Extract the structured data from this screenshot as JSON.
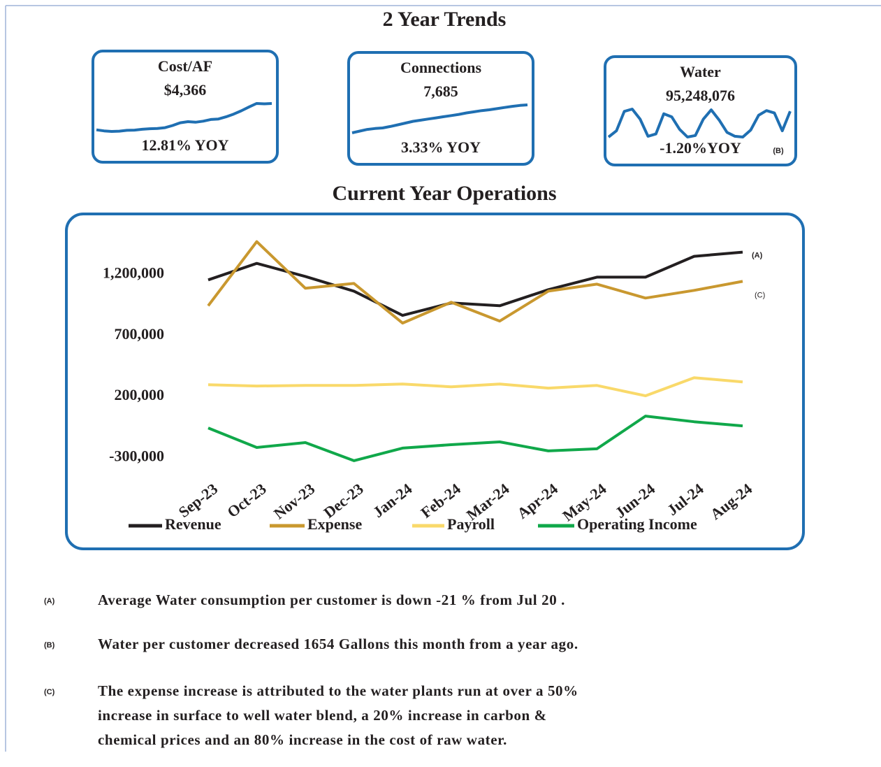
{
  "header": {
    "title": "2 Year Trends"
  },
  "kpis": [
    {
      "label": "Cost/AF",
      "value": "$4,366",
      "change": "12.81% YOY",
      "color": "#1f6fb2",
      "trend": [
        3880,
        3860,
        3850,
        3855,
        3870,
        3875,
        3890,
        3900,
        3905,
        3920,
        3960,
        4010,
        4030,
        4020,
        4040,
        4070,
        4080,
        4120,
        4170,
        4230,
        4300,
        4366,
        4360,
        4366
      ]
    },
    {
      "label": "Connections",
      "value": "7,685",
      "change": "3.33% YOY",
      "color": "#1f6fb2",
      "trend": [
        7200,
        7230,
        7260,
        7275,
        7285,
        7310,
        7340,
        7370,
        7400,
        7420,
        7440,
        7460,
        7480,
        7500,
        7520,
        7545,
        7565,
        7585,
        7600,
        7620,
        7640,
        7660,
        7675,
        7685
      ]
    },
    {
      "label": "Water",
      "value": "95,248,076",
      "change": "-1.20%YOY",
      "note": "(B)",
      "color": "#1f6fb2",
      "trend": [
        62000000,
        70000000,
        95000000,
        98000000,
        85000000,
        63000000,
        66000000,
        92000000,
        88000000,
        72000000,
        62000000,
        64000000,
        85000000,
        97000000,
        84000000,
        68000000,
        63000000,
        62000000,
        71000000,
        90000000,
        96000000,
        93000000,
        70000000,
        95248076
      ]
    }
  ],
  "section_title": "Current Year  Operations",
  "chart_data": {
    "type": "line",
    "categories": [
      "Sep-23",
      "Oct-23",
      "Nov-23",
      "Dec-23",
      "Jan-24",
      "Feb-24",
      "Mar-24",
      "Apr-24",
      "May-24",
      "Jun-24",
      "Jul-24",
      "Aug-24"
    ],
    "series": [
      {
        "name": "Revenue",
        "color": "#231f20",
        "values": [
          1155000,
          1290000,
          1183000,
          1063000,
          864000,
          966000,
          943000,
          1075000,
          1177000,
          1177000,
          1348000,
          1382000
        ]
      },
      {
        "name": "Expense",
        "color": "#c9982f",
        "values": [
          943000,
          1468000,
          1086000,
          1126000,
          801000,
          972000,
          818000,
          1063000,
          1120000,
          1006000,
          1069000,
          1143000
        ]
      },
      {
        "name": "Payroll",
        "color": "#f9d96a",
        "values": [
          297000,
          286000,
          291000,
          291000,
          303000,
          280000,
          303000,
          269000,
          291000,
          206000,
          354000,
          320000
        ]
      },
      {
        "name": "Operating Income",
        "color": "#10a84a",
        "values": [
          -57000,
          -217000,
          -177000,
          -325000,
          -222000,
          -194000,
          -171000,
          -245000,
          -228000,
          40000,
          -6000,
          -40000
        ]
      }
    ],
    "ylim": [
      -400000,
      1500000
    ],
    "yticks": [
      {
        "value": -300000,
        "label": "-300,000"
      },
      {
        "value": 200000,
        "label": "200,000"
      },
      {
        "value": 700000,
        "label": "700,000"
      },
      {
        "value": 1200000,
        "label": "1,200,000"
      }
    ],
    "grid": false,
    "legend": "bottom",
    "annotations": [
      {
        "text": "(A)"
      },
      {
        "text": "(C)"
      }
    ]
  },
  "notes": [
    {
      "marker": "(A)",
      "lines": [
        "Average Water consumption per customer is down -21 % from Jul 20 ."
      ]
    },
    {
      "marker": "(B)",
      "lines": [
        "Water  per customer decreased 1654 Gallons this month from a year ago."
      ]
    },
    {
      "marker": "(C)",
      "lines": [
        "The expense increase is attributed to the water plants run at over a 50%",
        "increase in surface to well water blend, a 20% increase in carbon &",
        "chemical prices and an 80% increase in the cost of raw water."
      ]
    }
  ]
}
